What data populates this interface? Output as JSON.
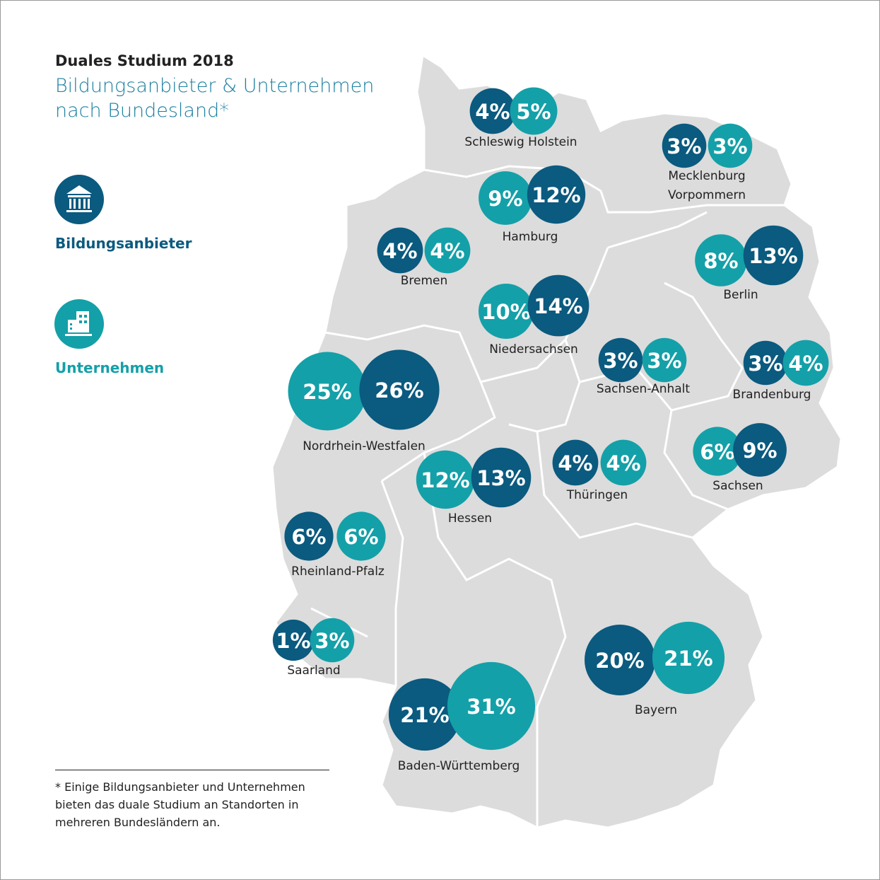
{
  "title": "Duales Studium 2018",
  "subtitle": "Bildungsanbieter & Unternehmen nach Bundesland*",
  "legend": [
    {
      "name": "Bildungsanbieter",
      "color": "#0b5a7f"
    },
    {
      "name": "Unternehmen",
      "color": "#14a0a8"
    }
  ],
  "states": [
    {
      "name": "Schleswig Holstein",
      "bildung": 4,
      "bildung_label": "4%",
      "unternehmen": 5,
      "unternehmen_label": "5%"
    },
    {
      "name": "Mecklenburg Vorpommern",
      "bildung": 3,
      "bildung_label": "3%",
      "unternehmen": 3,
      "unternehmen_label": "3%"
    },
    {
      "name": "Hamburg",
      "bildung": 12,
      "bildung_label": "12%",
      "unternehmen": 9,
      "unternehmen_label": "9%"
    },
    {
      "name": "Bremen",
      "bildung": 4,
      "bildung_label": "4%",
      "unternehmen": 4,
      "unternehmen_label": "4%"
    },
    {
      "name": "Berlin",
      "bildung": 13,
      "bildung_label": "13%",
      "unternehmen": 8,
      "unternehmen_label": "8%"
    },
    {
      "name": "Niedersachsen",
      "bildung": 14,
      "bildung_label": "14%",
      "unternehmen": 10,
      "unternehmen_label": "10%"
    },
    {
      "name": "Sachsen-Anhalt",
      "bildung": 3,
      "bildung_label": "3%",
      "unternehmen": 3,
      "unternehmen_label": "3%"
    },
    {
      "name": "Brandenburg",
      "bildung": 3,
      "bildung_label": "3%",
      "unternehmen": 4,
      "unternehmen_label": "4%"
    },
    {
      "name": "Nordrhein-Westfalen",
      "bildung": 26,
      "bildung_label": "26%",
      "unternehmen": 25,
      "unternehmen_label": "25%"
    },
    {
      "name": "Hessen",
      "bildung": 13,
      "bildung_label": "13%",
      "unternehmen": 12,
      "unternehmen_label": "12%"
    },
    {
      "name": "Thüringen",
      "bildung": 4,
      "bildung_label": "4%",
      "unternehmen": 4,
      "unternehmen_label": "4%"
    },
    {
      "name": "Sachsen",
      "bildung": 9,
      "bildung_label": "9%",
      "unternehmen": 6,
      "unternehmen_label": "6%"
    },
    {
      "name": "Rheinland-Pfalz",
      "bildung": 6,
      "bildung_label": "6%",
      "unternehmen": 6,
      "unternehmen_label": "6%"
    },
    {
      "name": "Saarland",
      "bildung": 1,
      "bildung_label": "1%",
      "unternehmen": 3,
      "unternehmen_label": "3%"
    },
    {
      "name": "Baden-Württemberg",
      "bildung": 21,
      "bildung_label": "21%",
      "unternehmen": 31,
      "unternehmen_label": "31%"
    },
    {
      "name": "Bayern",
      "bildung": 20,
      "bildung_label": "20%",
      "unternehmen": 21,
      "unternehmen_label": "21%"
    }
  ],
  "footnote": "* Einige Bildungsanbieter und Unternehmen bieten das duale Studium an Standorten in mehreren Bundesländern an."
}
